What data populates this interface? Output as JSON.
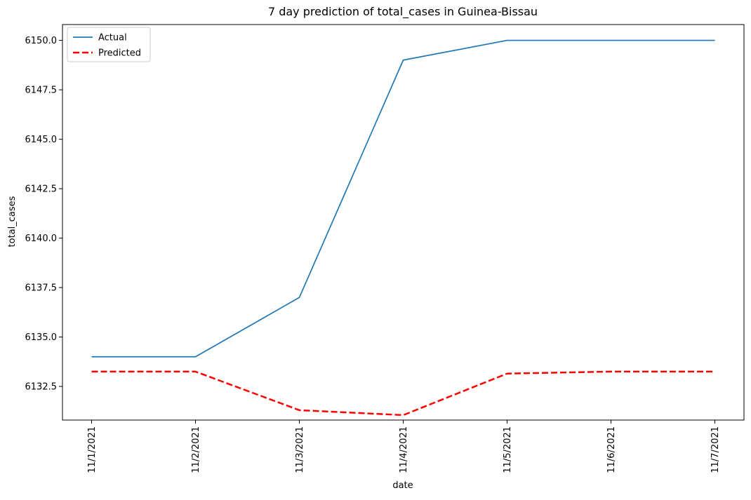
{
  "chart_data": {
    "type": "line",
    "title": "7 day prediction of total_cases in Guinea-Bissau",
    "xlabel": "date",
    "ylabel": "total_cases",
    "categories": [
      "11/1/2021",
      "11/2/2021",
      "11/3/2021",
      "11/4/2021",
      "11/5/2021",
      "11/6/2021",
      "11/7/2021"
    ],
    "ylim": [
      6130.8,
      6150.8
    ],
    "yticks": [
      6132.5,
      6135.0,
      6137.5,
      6140.0,
      6142.5,
      6145.0,
      6147.5,
      6150.0
    ],
    "ytick_labels": [
      "6132.5",
      "6135.0",
      "6137.5",
      "6140.0",
      "6142.5",
      "6145.0",
      "6147.5",
      "6150.0"
    ],
    "grid": false,
    "legend_position": "top-left",
    "series": [
      {
        "name": "Actual",
        "values": [
          6134,
          6134,
          6137,
          6149,
          6150,
          6150,
          6150
        ],
        "color": "#1f77b4",
        "style": "solid"
      },
      {
        "name": "Predicted",
        "values": [
          6133.25,
          6133.25,
          6131.3,
          6131.05,
          6133.15,
          6133.25,
          6133.25
        ],
        "color": "#ff0000",
        "style": "dashed"
      }
    ]
  }
}
